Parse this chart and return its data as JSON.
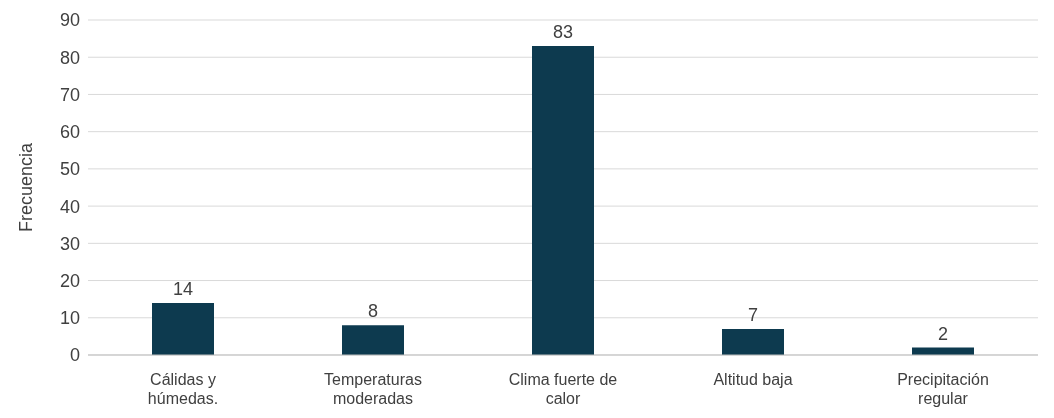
{
  "chart_data": {
    "type": "bar",
    "ylabel": "Frecuencia",
    "categories": [
      "Cálidas y húmedas.",
      "Temperaturas moderadas",
      "Clima fuerte de calor",
      "Altitud baja",
      "Precipitación regular"
    ],
    "values": [
      14,
      8,
      83,
      7,
      2
    ],
    "color": "#0d3a4f",
    "data_labels": true,
    "ylim": [
      0,
      90
    ],
    "yticks": [
      0,
      10,
      20,
      30,
      40,
      50,
      60,
      70,
      80,
      90
    ],
    "grid": "y"
  }
}
